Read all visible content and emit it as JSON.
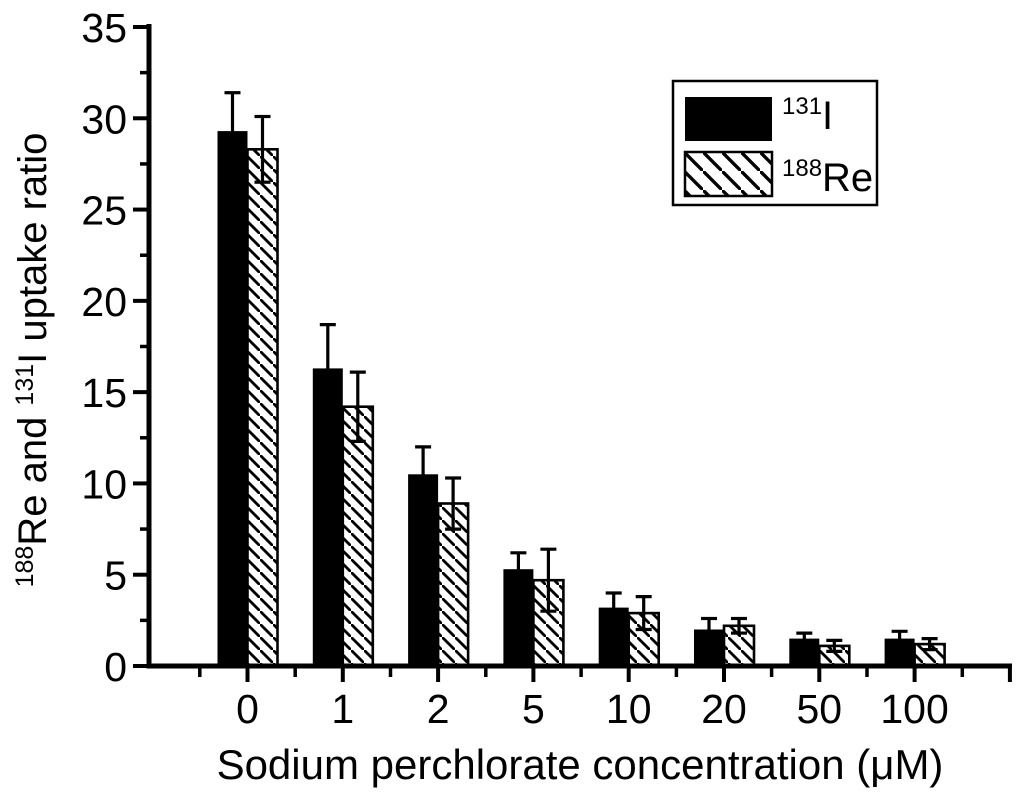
{
  "colors": {
    "foreground": "#000000",
    "background": "#ffffff"
  },
  "chart_data": {
    "type": "bar",
    "title": "",
    "xlabel": "Sodium perchlorate concentration (μM)",
    "ylabel_plain": "188Re and 131I uptake ratio",
    "ylabel_parts": [
      {
        "text": "188",
        "sup": true
      },
      {
        "text": "Re and ",
        "sup": false
      },
      {
        "text": "131",
        "sup": true
      },
      {
        "text": "I uptake ratio",
        "sup": false
      }
    ],
    "categories": [
      "0",
      "1",
      "2",
      "5",
      "10",
      "20",
      "50",
      "100"
    ],
    "series": [
      {
        "name_plain": "131I",
        "name_parts": [
          {
            "text": "131",
            "sup": true
          },
          {
            "text": "I",
            "sup": false
          }
        ],
        "fill": "solid",
        "values": [
          29.3,
          16.3,
          10.5,
          5.3,
          3.2,
          2.0,
          1.5,
          1.5
        ],
        "errors": [
          2.1,
          2.4,
          1.5,
          0.9,
          0.8,
          0.6,
          0.3,
          0.4
        ]
      },
      {
        "name_plain": "188Re",
        "name_parts": [
          {
            "text": "188",
            "sup": true
          },
          {
            "text": "Re",
            "sup": false
          }
        ],
        "fill": "hatched",
        "values": [
          28.3,
          14.2,
          8.9,
          4.7,
          2.9,
          2.2,
          1.1,
          1.2
        ],
        "errors": [
          1.8,
          1.9,
          1.4,
          1.7,
          0.9,
          0.4,
          0.3,
          0.3
        ]
      }
    ],
    "ylim": [
      0,
      35
    ],
    "y_major_step": 5,
    "y_minor_step": 2.5,
    "y_tick_labels": [
      "0",
      "5",
      "10",
      "15",
      "20",
      "25",
      "30",
      "35"
    ],
    "legend_position": "top-right",
    "grid": false,
    "error_bars": true
  }
}
